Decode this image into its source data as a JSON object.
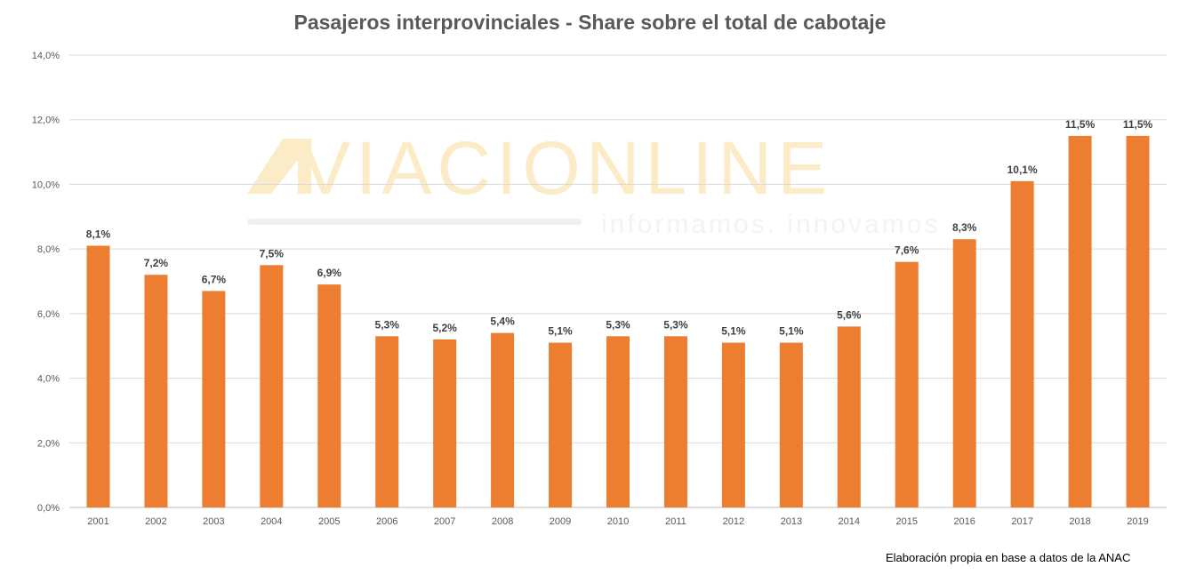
{
  "chart_data": {
    "type": "bar",
    "title": "Pasajeros interprovinciales - Share sobre el total de cabotaje",
    "xlabel": "",
    "ylabel": "",
    "categories": [
      "2001",
      "2002",
      "2003",
      "2004",
      "2005",
      "2006",
      "2007",
      "2008",
      "2009",
      "2010",
      "2011",
      "2012",
      "2013",
      "2014",
      "2015",
      "2016",
      "2017",
      "2018",
      "2019"
    ],
    "values": [
      8.1,
      7.2,
      6.7,
      7.5,
      6.9,
      5.3,
      5.2,
      5.4,
      5.1,
      5.3,
      5.3,
      5.1,
      5.1,
      5.6,
      7.6,
      8.3,
      10.1,
      11.5,
      11.5
    ],
    "data_labels": [
      "8,1%",
      "7,2%",
      "6,7%",
      "7,5%",
      "6,9%",
      "5,3%",
      "5,2%",
      "5,4%",
      "5,1%",
      "5,3%",
      "5,3%",
      "5,1%",
      "5,1%",
      "5,6%",
      "7,6%",
      "8,3%",
      "10,1%",
      "11,5%",
      "11,5%"
    ],
    "ylim": [
      0,
      14
    ],
    "y_ticks": [
      0,
      2,
      4,
      6,
      8,
      10,
      12,
      14
    ],
    "y_tick_labels": [
      "0,0%",
      "2,0%",
      "4,0%",
      "6,0%",
      "8,0%",
      "10,0%",
      "12,0%",
      "14,0%"
    ],
    "grid": true,
    "legend": "none",
    "bar_color": "#ED7D31"
  },
  "watermark": {
    "brand": "AVIACIONLINE",
    "tagline": "informamos. innovamos",
    "color": "#FCEBC7"
  },
  "source_note": "Elaboración propia en base a datos de la ANAC"
}
